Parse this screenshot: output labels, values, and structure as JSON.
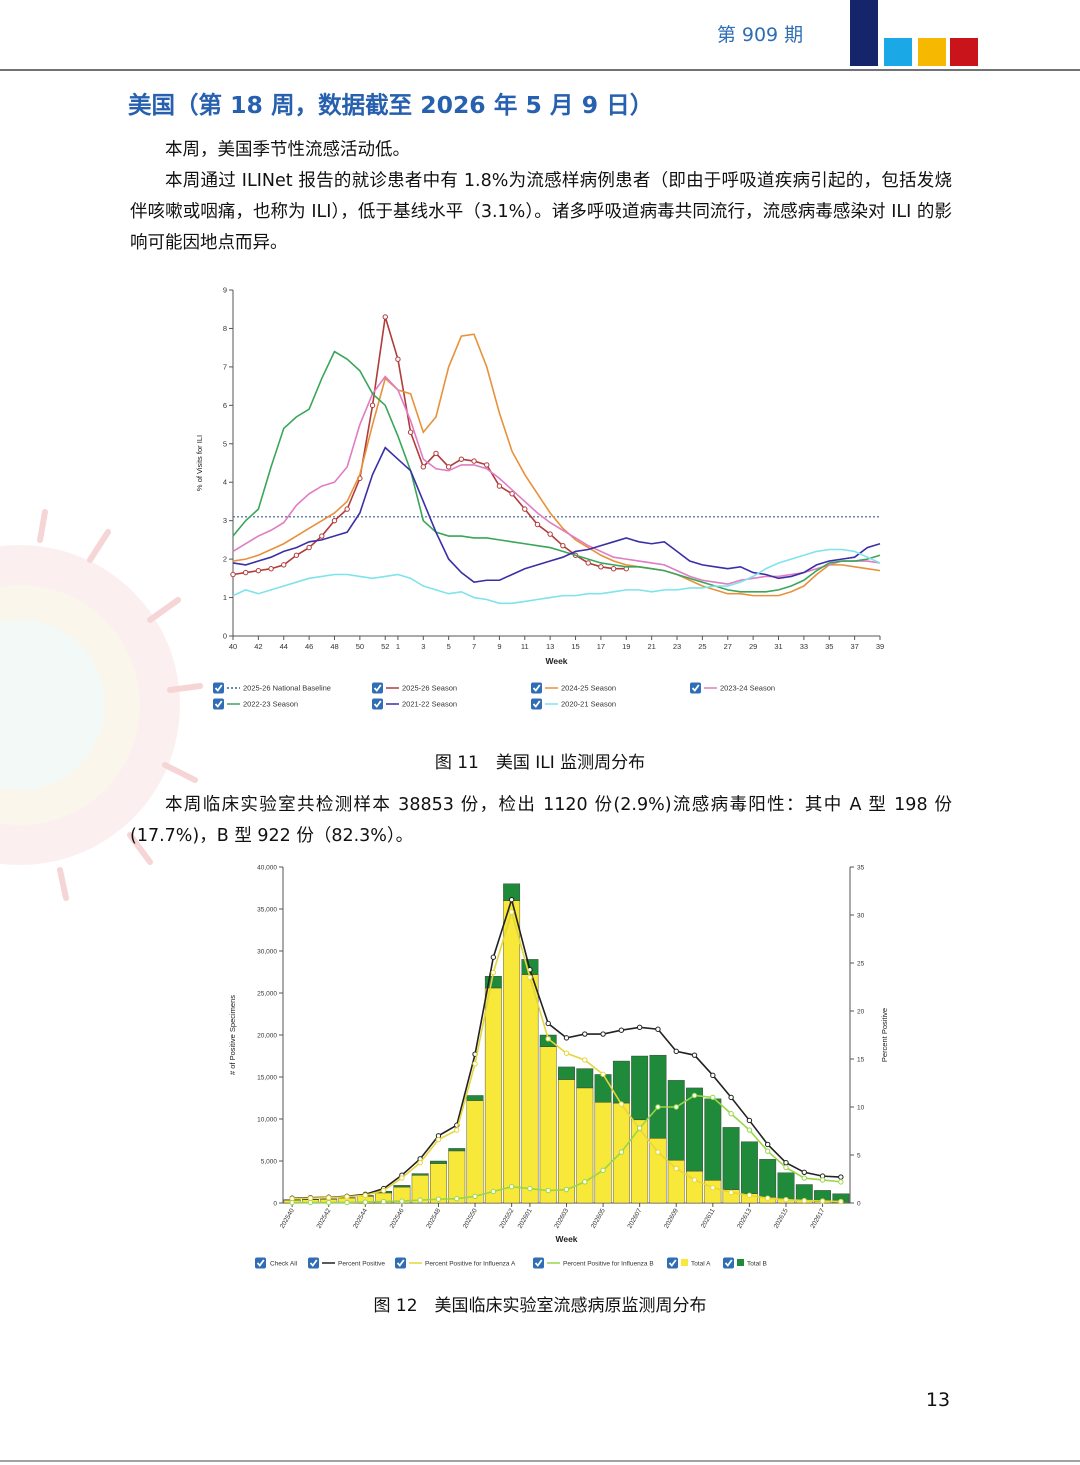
{
  "header": {
    "issue": "第 909 期"
  },
  "section_title": "美国（第 18 周，数据截至 2026 年 5 月 9 日）",
  "paragraphs": [
    "本周，美国季节性流感活动低。",
    "本周通过 ILINet 报告的就诊患者中有 1.8%为流感样病例患者（即由于呼吸道疾病引起的，包括发烧伴咳嗽或咽痛，也称为 ILI），低于基线水平（3.1%）。诸多呼吸道病毒共同流行，流感病毒感染对 ILI 的影响可能因地点而异。",
    "本周临床实验室共检测样本 38853 份，检出 1120 份(2.9%)流感病毒阳性：其中 A 型 198 份(17.7%)，B 型 922 份（82.3%）。"
  ],
  "captions": [
    "图 11　美国 ILI 监测周分布",
    "图 12　美国临床实验室流感病原监测周分布"
  ],
  "page_number": "13",
  "chart_data": [
    {
      "type": "line",
      "xlabel": "Week",
      "ylabel": "% of Visits for ILI",
      "ylim": [
        0,
        9
      ],
      "yticks": [
        0,
        1,
        2,
        3,
        4,
        5,
        6,
        7,
        8,
        9
      ],
      "categories": [
        40,
        null,
        42,
        null,
        44,
        null,
        46,
        null,
        48,
        null,
        50,
        null,
        52,
        1,
        null,
        3,
        null,
        5,
        null,
        7,
        null,
        9,
        null,
        11,
        null,
        13,
        null,
        15,
        null,
        17,
        null,
        19,
        null,
        21,
        null,
        23,
        null,
        25,
        null,
        27,
        null,
        29,
        null,
        31,
        null,
        33,
        null,
        35,
        null,
        37,
        null,
        39
      ],
      "series": [
        {
          "name": "2025-26 National Baseline",
          "color": "#3f5f8f",
          "dash": true,
          "values": [
            3.1,
            3.1,
            3.1,
            3.1,
            3.1,
            3.1,
            3.1,
            3.1,
            3.1,
            3.1,
            3.1,
            3.1,
            3.1,
            3.1,
            3.1,
            3.1,
            3.1,
            3.1,
            3.1,
            3.1,
            3.1,
            3.1,
            3.1,
            3.1,
            3.1,
            3.1,
            3.1,
            3.1,
            3.1,
            3.1,
            3.1,
            3.1,
            3.1,
            3.1,
            3.1,
            3.1,
            3.1,
            3.1,
            3.1,
            3.1,
            3.1,
            3.1,
            3.1,
            3.1,
            3.1,
            3.1,
            3.1,
            3.1,
            3.1,
            3.1,
            3.1,
            3.1
          ]
        },
        {
          "name": "2025-26 Season",
          "color": "#b23b3b",
          "markers": true,
          "values": [
            1.6,
            1.65,
            1.7,
            1.75,
            1.85,
            2.1,
            2.3,
            2.6,
            3.0,
            3.3,
            4.1,
            6.0,
            8.3,
            7.2,
            5.3,
            4.4,
            4.75,
            4.4,
            4.6,
            4.55,
            4.45,
            3.9,
            3.7,
            3.3,
            2.9,
            2.65,
            2.35,
            2.1,
            1.9,
            1.8,
            1.75,
            1.75,
            null,
            null,
            null,
            null,
            null,
            null,
            null,
            null,
            null,
            null,
            null,
            null,
            null,
            null,
            null,
            null,
            null,
            null,
            null,
            null
          ]
        },
        {
          "name": "2024-25 Season",
          "color": "#e8913a",
          "values": [
            1.95,
            2.0,
            2.1,
            2.25,
            2.4,
            2.6,
            2.8,
            3.0,
            3.2,
            3.5,
            4.2,
            5.5,
            6.7,
            6.4,
            6.3,
            5.3,
            5.7,
            7.0,
            7.8,
            7.85,
            7.0,
            5.8,
            4.8,
            4.2,
            3.7,
            3.2,
            2.8,
            2.5,
            2.3,
            2.1,
            1.95,
            1.85,
            1.8,
            1.75,
            1.7,
            1.6,
            1.45,
            1.3,
            1.2,
            1.1,
            1.1,
            1.05,
            1.05,
            1.05,
            1.15,
            1.3,
            1.6,
            1.85,
            1.85,
            1.8,
            1.75,
            1.7
          ]
        },
        {
          "name": "2023-24 Season",
          "color": "#e07cc2",
          "values": [
            2.2,
            2.4,
            2.6,
            2.75,
            2.95,
            3.4,
            3.7,
            3.9,
            4.0,
            4.4,
            5.5,
            6.3,
            6.75,
            6.4,
            5.6,
            4.6,
            4.35,
            4.3,
            4.45,
            4.45,
            4.35,
            4.1,
            3.8,
            3.5,
            3.2,
            2.95,
            2.75,
            2.55,
            2.35,
            2.2,
            2.05,
            2.0,
            1.95,
            1.9,
            1.85,
            1.7,
            1.55,
            1.45,
            1.4,
            1.35,
            1.45,
            1.5,
            1.55,
            1.55,
            1.6,
            1.65,
            1.75,
            1.85,
            1.95,
            1.95,
            1.95,
            1.9
          ]
        },
        {
          "name": "2022-23 Season",
          "color": "#3aa65a",
          "values": [
            2.6,
            3.0,
            3.3,
            4.4,
            5.4,
            5.7,
            5.9,
            6.7,
            7.4,
            7.2,
            6.9,
            6.3,
            6.0,
            5.2,
            4.3,
            3.0,
            2.7,
            2.6,
            2.6,
            2.55,
            2.55,
            2.5,
            2.45,
            2.4,
            2.35,
            2.3,
            2.2,
            2.1,
            2.0,
            1.9,
            1.85,
            1.8,
            1.8,
            1.75,
            1.7,
            1.6,
            1.5,
            1.4,
            1.3,
            1.2,
            1.15,
            1.15,
            1.15,
            1.2,
            1.3,
            1.45,
            1.7,
            1.9,
            1.95,
            1.95,
            2.0,
            2.1
          ]
        },
        {
          "name": "2021-22 Season",
          "color": "#3a2fa6",
          "values": [
            1.9,
            1.85,
            1.95,
            2.05,
            2.2,
            2.3,
            2.45,
            2.5,
            2.6,
            2.7,
            3.2,
            4.2,
            4.9,
            4.6,
            4.3,
            3.5,
            2.7,
            2.0,
            1.65,
            1.4,
            1.45,
            1.45,
            1.6,
            1.75,
            1.85,
            1.95,
            2.05,
            2.2,
            2.25,
            2.35,
            2.45,
            2.55,
            2.45,
            2.4,
            2.45,
            2.2,
            1.95,
            1.85,
            1.8,
            1.75,
            1.8,
            1.65,
            1.6,
            1.5,
            1.55,
            1.65,
            1.85,
            1.95,
            2.0,
            2.05,
            2.3,
            2.4
          ]
        },
        {
          "name": "2020-21 Season",
          "color": "#7fe3ec",
          "values": [
            1.05,
            1.2,
            1.1,
            1.2,
            1.3,
            1.4,
            1.5,
            1.55,
            1.6,
            1.6,
            1.55,
            1.5,
            1.55,
            1.6,
            1.5,
            1.3,
            1.2,
            1.1,
            1.15,
            1.0,
            0.95,
            0.85,
            0.85,
            0.9,
            0.95,
            1.0,
            1.05,
            1.05,
            1.1,
            1.1,
            1.15,
            1.2,
            1.2,
            1.15,
            1.2,
            1.2,
            1.25,
            1.25,
            1.3,
            1.3,
            1.4,
            1.55,
            1.75,
            1.9,
            2.0,
            2.1,
            2.2,
            2.25,
            2.25,
            2.2,
            2.05,
            1.9
          ]
        }
      ]
    },
    {
      "type": "bar",
      "stacked": true,
      "xlabel": "Week",
      "ylabel": "# of Positive Specimens",
      "y2label": "Percent Positive",
      "check_all_label": "Check All",
      "ylim": [
        0,
        40000
      ],
      "yticks": [
        0,
        {
          "value": 5000,
          "label": "5,000"
        },
        {
          "value": 10000,
          "label": "10,000"
        },
        {
          "value": 15000,
          "label": "15,000"
        },
        {
          "value": 20000,
          "label": "20,000"
        },
        {
          "value": 25000,
          "label": "25,000"
        },
        {
          "value": 30000,
          "label": "30,000"
        },
        {
          "value": 35000,
          "label": "35,000"
        },
        {
          "value": 40000,
          "label": "40,000"
        }
      ],
      "y2lim": [
        0,
        35
      ],
      "y2ticks": [
        0,
        5,
        10,
        15,
        20,
        25,
        30,
        35
      ],
      "categories": [
        "202540",
        null,
        "202542",
        null,
        "202544",
        null,
        "202546",
        null,
        "202548",
        null,
        "202550",
        null,
        "202552",
        "202601",
        null,
        "202603",
        null,
        "202605",
        null,
        "202607",
        null,
        "202609",
        null,
        "202611",
        null,
        "202613",
        null,
        "202615",
        null,
        "202617",
        null
      ],
      "series": [
        {
          "name": "Percent Positive",
          "type": "line",
          "axis": "y2",
          "color": "#222222",
          "markers": true,
          "values": [
            0.5,
            0.55,
            0.6,
            0.7,
            0.9,
            1.5,
            2.9,
            4.6,
            7.0,
            8.1,
            15.5,
            25.6,
            31.6,
            24.3,
            18.7,
            17.2,
            17.6,
            17.6,
            18.0,
            18.3,
            18.1,
            15.8,
            15.4,
            13.3,
            11.0,
            8.6,
            6.1,
            4.2,
            3.2,
            2.8,
            2.7
          ]
        },
        {
          "name": "Percent Positive for Influenza A",
          "type": "line",
          "axis": "y2",
          "color": "#e6d63a",
          "markers": true,
          "values": [
            0.45,
            0.5,
            0.55,
            0.65,
            0.8,
            1.3,
            2.6,
            4.2,
            6.6,
            7.6,
            14.5,
            24.0,
            30.3,
            23.5,
            17.1,
            15.6,
            14.9,
            13.4,
            10.3,
            7.7,
            5.3,
            3.6,
            2.4,
            1.6,
            1.1,
            0.8,
            0.5,
            0.35,
            0.25,
            0.2,
            0.15
          ]
        },
        {
          "name": "Percent Positive for Influenza B",
          "type": "line",
          "axis": "y2",
          "color": "#9ad64a",
          "markers": true,
          "values": [
            0.05,
            0.05,
            0.05,
            0.05,
            0.1,
            0.15,
            0.2,
            0.3,
            0.4,
            0.45,
            0.7,
            1.2,
            1.7,
            1.5,
            1.3,
            1.4,
            2.2,
            3.4,
            5.3,
            7.8,
            10.0,
            10.0,
            11.2,
            11.0,
            9.3,
            7.6,
            5.4,
            3.7,
            2.6,
            2.4,
            2.2
          ]
        },
        {
          "name": "Total A",
          "type": "bar",
          "color": "#f7e83a",
          "values": [
            350,
            400,
            450,
            600,
            800,
            1200,
            1900,
            3300,
            4700,
            6200,
            12200,
            25600,
            36000,
            27200,
            18600,
            14700,
            13700,
            12000,
            11900,
            9900,
            7700,
            5100,
            3800,
            2700,
            1600,
            1100,
            700,
            450,
            300,
            180,
            100
          ]
        },
        {
          "name": "Total B",
          "type": "bar",
          "color": "#1f8a3a",
          "values": [
            50,
            50,
            50,
            50,
            100,
            200,
            200,
            200,
            300,
            300,
            600,
            1400,
            2000,
            1800,
            1400,
            1500,
            2300,
            3300,
            5000,
            7600,
            9900,
            9500,
            9900,
            9700,
            7400,
            6200,
            4500,
            3150,
            1900,
            1320,
            1000
          ]
        }
      ]
    }
  ]
}
